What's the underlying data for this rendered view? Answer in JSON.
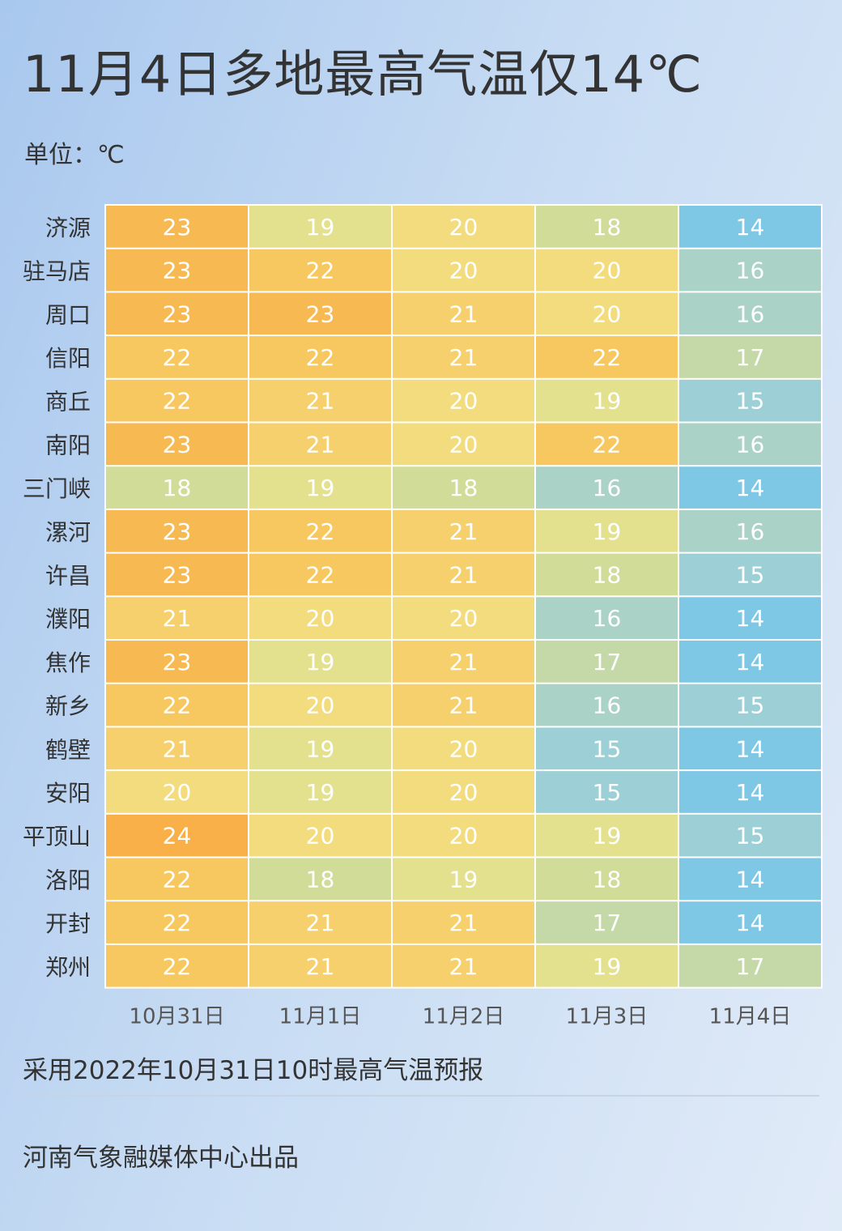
{
  "title": "11月4日多地最高气温仅14℃",
  "unit_label": "单位：℃",
  "note": "采用2022年10月31日10时最高气温预报",
  "credit": "河南气象融媒体中心出品",
  "colors": {
    "14": "#7ec8e6",
    "15": "#9dd0d6",
    "16": "#abd2c6",
    "17": "#c4d8a8",
    "18": "#d1dc98",
    "19": "#e4e18e",
    "20": "#f3dc7e",
    "21": "#f6d06c",
    "22": "#f8c860",
    "23": "#f7b952",
    "24": "#f9b048"
  },
  "chart_data": {
    "type": "heatmap",
    "title": "11月4日多地最高气温仅14℃",
    "unit": "℃",
    "columns": [
      "10月31日",
      "11月1日",
      "11月2日",
      "11月3日",
      "11月4日"
    ],
    "rows": [
      "济源",
      "驻马店",
      "周口",
      "信阳",
      "商丘",
      "南阳",
      "三门峡",
      "漯河",
      "许昌",
      "濮阳",
      "焦作",
      "新乡",
      "鹤壁",
      "安阳",
      "平顶山",
      "洛阳",
      "开封",
      "郑州"
    ],
    "values": [
      [
        23,
        19,
        20,
        18,
        14
      ],
      [
        23,
        22,
        20,
        20,
        16
      ],
      [
        23,
        23,
        21,
        20,
        16
      ],
      [
        22,
        22,
        21,
        22,
        17
      ],
      [
        22,
        21,
        20,
        19,
        15
      ],
      [
        23,
        21,
        20,
        22,
        16
      ],
      [
        18,
        19,
        18,
        16,
        14
      ],
      [
        23,
        22,
        21,
        19,
        16
      ],
      [
        23,
        22,
        21,
        18,
        15
      ],
      [
        21,
        20,
        20,
        16,
        14
      ],
      [
        23,
        19,
        21,
        17,
        14
      ],
      [
        22,
        20,
        21,
        16,
        15
      ],
      [
        21,
        19,
        20,
        15,
        14
      ],
      [
        20,
        19,
        20,
        15,
        14
      ],
      [
        24,
        20,
        20,
        19,
        15
      ],
      [
        22,
        18,
        19,
        18,
        14
      ],
      [
        22,
        21,
        21,
        17,
        14
      ],
      [
        22,
        21,
        21,
        19,
        17
      ]
    ]
  }
}
